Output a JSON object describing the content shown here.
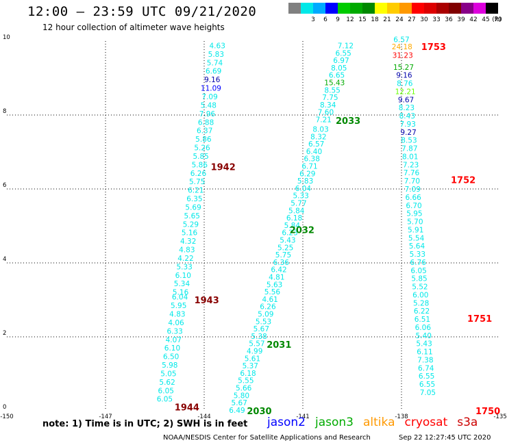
{
  "header": {
    "title": "12:00 – 23:59 UTC 09/21/2020",
    "subtitle": "12 hour collection of altimeter wave heights"
  },
  "scale": {
    "unit_label": "(ft)",
    "bins": [
      {
        "label": "",
        "color": "#808080"
      },
      {
        "label": "3",
        "color": "#00e8e8"
      },
      {
        "label": "6",
        "color": "#00aaff"
      },
      {
        "label": "9",
        "color": "#0000ff"
      },
      {
        "label": "12",
        "color": "#00cc00"
      },
      {
        "label": "15",
        "color": "#00aa00"
      },
      {
        "label": "18",
        "color": "#008800"
      },
      {
        "label": "21",
        "color": "#ffff00"
      },
      {
        "label": "24",
        "color": "#ffcc00"
      },
      {
        "label": "27",
        "color": "#ff9900"
      },
      {
        "label": "30",
        "color": "#ff0000"
      },
      {
        "label": "33",
        "color": "#dd0000"
      },
      {
        "label": "36",
        "color": "#aa0000"
      },
      {
        "label": "39",
        "color": "#800000"
      },
      {
        "label": "42",
        "color": "#880088"
      },
      {
        "label": "45",
        "color": "#dd00dd"
      },
      {
        "label": "70",
        "color": "#000000"
      }
    ]
  },
  "map": {
    "lon_range": [
      -150,
      -135
    ],
    "lat_range": [
      0,
      10
    ],
    "x_ticks": [
      "-150",
      "-147",
      "-144",
      "-141",
      "-138",
      "-135"
    ],
    "y_ticks": [
      "0",
      "2",
      "4",
      "6",
      "8",
      "10"
    ],
    "grid": true
  },
  "chart_data": {
    "type": "scatter",
    "units": "ft",
    "tracks": [
      {
        "satellite": "cryosat",
        "color": "#00e8e8",
        "pass_labels": [
          {
            "text": "1942",
            "lat": 6.6,
            "lon": -143.8,
            "color": "#880000"
          },
          {
            "text": "1943",
            "lat": 3.0,
            "lon": -144.3,
            "color": "#880000"
          },
          {
            "text": "1944",
            "lat": 0.1,
            "lon": -144.9,
            "color": "#880000"
          }
        ],
        "points": [
          {
            "lat": 9.88,
            "value": "4.63"
          },
          {
            "lat": 9.65,
            "value": "5.83"
          },
          {
            "lat": 9.42,
            "value": "5.74"
          },
          {
            "lat": 9.19,
            "value": "6.69"
          },
          {
            "lat": 8.96,
            "value": "9.16",
            "color": "#0000aa"
          },
          {
            "lat": 8.73,
            "value": "11.09",
            "color": "#0000ff"
          },
          {
            "lat": 8.5,
            "value": "7.09"
          },
          {
            "lat": 8.27,
            "value": "5.48"
          },
          {
            "lat": 8.04,
            "value": "7.96"
          },
          {
            "lat": 7.81,
            "value": "6.88"
          },
          {
            "lat": 7.58,
            "value": "6.37"
          },
          {
            "lat": 7.35,
            "value": "5.86"
          },
          {
            "lat": 7.12,
            "value": "5.26"
          },
          {
            "lat": 6.89,
            "value": "5.85"
          },
          {
            "lat": 6.66,
            "value": "5.86"
          },
          {
            "lat": 6.43,
            "value": "6.26"
          },
          {
            "lat": 6.2,
            "value": "5.75"
          },
          {
            "lat": 5.97,
            "value": "6.21"
          },
          {
            "lat": 5.74,
            "value": "6.35"
          },
          {
            "lat": 5.51,
            "value": "5.69"
          },
          {
            "lat": 5.28,
            "value": "5.65"
          },
          {
            "lat": 5.05,
            "value": "5.29"
          },
          {
            "lat": 4.82,
            "value": "5.16"
          },
          {
            "lat": 4.59,
            "value": "4.32"
          },
          {
            "lat": 4.36,
            "value": "4.83"
          },
          {
            "lat": 4.13,
            "value": "4.22"
          },
          {
            "lat": 3.9,
            "value": "5.33"
          },
          {
            "lat": 3.67,
            "value": "6.10"
          },
          {
            "lat": 3.44,
            "value": "5.34"
          },
          {
            "lat": 3.21,
            "value": "5.16"
          },
          {
            "lat": 3.08,
            "value": "6.04"
          },
          {
            "lat": 2.85,
            "value": "5.95"
          },
          {
            "lat": 2.62,
            "value": "4.83"
          },
          {
            "lat": 2.39,
            "value": "4.06"
          },
          {
            "lat": 2.16,
            "value": "6.33"
          },
          {
            "lat": 1.93,
            "value": "4.07"
          },
          {
            "lat": 1.7,
            "value": "6.10"
          },
          {
            "lat": 1.47,
            "value": "6.50"
          },
          {
            "lat": 1.24,
            "value": "5.98"
          },
          {
            "lat": 1.01,
            "value": "5.05"
          },
          {
            "lat": 0.78,
            "value": "5.62"
          },
          {
            "lat": 0.55,
            "value": "6.05"
          },
          {
            "lat": 0.32,
            "value": "6.05"
          }
        ]
      },
      {
        "satellite": "jason3",
        "color": "#00e8e8",
        "pass_labels": [
          {
            "text": "2033",
            "lat": 7.85,
            "lon": -140.0,
            "color": "#008800"
          },
          {
            "text": "2032",
            "lat": 4.9,
            "lon": -141.4,
            "color": "#008800"
          },
          {
            "text": "2031",
            "lat": 1.8,
            "lon": -142.1,
            "color": "#008800"
          },
          {
            "text": "2030",
            "lat": 0.0,
            "lon": -142.7,
            "color": "#008800"
          }
        ],
        "points": [
          {
            "lat": 9.88,
            "value": "7.12"
          },
          {
            "lat": 9.68,
            "value": "6.55"
          },
          {
            "lat": 9.48,
            "value": "6.97"
          },
          {
            "lat": 9.28,
            "value": "8.05"
          },
          {
            "lat": 9.08,
            "value": "6.65"
          },
          {
            "lat": 8.88,
            "value": "15.43",
            "color": "#00aa00"
          },
          {
            "lat": 8.68,
            "value": "8.55"
          },
          {
            "lat": 8.48,
            "value": "7.75"
          },
          {
            "lat": 8.28,
            "value": "8.34"
          },
          {
            "lat": 8.08,
            "value": "7.60"
          },
          {
            "lat": 7.88,
            "value": "7.21"
          },
          {
            "lat": 7.62,
            "value": "8.03"
          },
          {
            "lat": 7.42,
            "value": "8.32"
          },
          {
            "lat": 7.22,
            "value": "6.57"
          },
          {
            "lat": 7.02,
            "value": "6.40"
          },
          {
            "lat": 6.82,
            "value": "6.38"
          },
          {
            "lat": 6.62,
            "value": "6.71"
          },
          {
            "lat": 6.42,
            "value": "6.29"
          },
          {
            "lat": 6.22,
            "value": "5.83"
          },
          {
            "lat": 6.02,
            "value": "6.04"
          },
          {
            "lat": 5.82,
            "value": "5.33"
          },
          {
            "lat": 5.62,
            "value": "5.77"
          },
          {
            "lat": 5.42,
            "value": "5.84"
          },
          {
            "lat": 5.22,
            "value": "6.18"
          },
          {
            "lat": 5.02,
            "value": "5.84"
          },
          {
            "lat": 4.82,
            "value": "6.23"
          },
          {
            "lat": 4.62,
            "value": "5.43"
          },
          {
            "lat": 4.42,
            "value": "5.25"
          },
          {
            "lat": 4.22,
            "value": "5.75"
          },
          {
            "lat": 4.02,
            "value": "6.36"
          },
          {
            "lat": 3.82,
            "value": "6.42"
          },
          {
            "lat": 3.62,
            "value": "4.81"
          },
          {
            "lat": 3.42,
            "value": "5.63"
          },
          {
            "lat": 3.22,
            "value": "5.56"
          },
          {
            "lat": 3.02,
            "value": "4.61"
          },
          {
            "lat": 2.82,
            "value": "6.26"
          },
          {
            "lat": 2.62,
            "value": "5.09"
          },
          {
            "lat": 2.42,
            "value": "5.53"
          },
          {
            "lat": 2.22,
            "value": "5.67"
          },
          {
            "lat": 2.02,
            "value": "5.38"
          },
          {
            "lat": 1.82,
            "value": "5.57"
          },
          {
            "lat": 1.62,
            "value": "4.99"
          },
          {
            "lat": 1.42,
            "value": "5.61"
          },
          {
            "lat": 1.22,
            "value": "5.37"
          },
          {
            "lat": 1.02,
            "value": "6.18"
          },
          {
            "lat": 0.82,
            "value": "5.55"
          },
          {
            "lat": 0.62,
            "value": "5.66"
          },
          {
            "lat": 0.42,
            "value": "5.80"
          },
          {
            "lat": 0.22,
            "value": "5.67"
          },
          {
            "lat": 0.02,
            "value": "6.49"
          }
        ]
      },
      {
        "satellite": "s3a",
        "color": "#00e8e8",
        "pass_labels": [
          {
            "text": "1753",
            "lat": 9.85,
            "lon": -137.4,
            "color": "#ff0000"
          },
          {
            "text": "1752",
            "lat": 6.25,
            "lon": -136.5,
            "color": "#ff0000"
          },
          {
            "text": "1751",
            "lat": 2.5,
            "lon": -136.0,
            "color": "#ff0000"
          },
          {
            "text": "1750",
            "lat": 0.0,
            "lon": -135.75,
            "color": "#ff0000"
          }
        ],
        "points": [
          {
            "lat": 10.05,
            "value": "6.57"
          },
          {
            "lat": 9.85,
            "value": "24.18",
            "color": "#ffaa00"
          },
          {
            "lat": 9.62,
            "value": "31.23",
            "color": "#ff0000"
          },
          {
            "lat": 9.3,
            "value": "15.27",
            "color": "#00aa00"
          },
          {
            "lat": 9.08,
            "value": "9.16",
            "color": "#0000aa"
          },
          {
            "lat": 8.86,
            "value": "8.76"
          },
          {
            "lat": 8.64,
            "value": "12.21",
            "color": "#66ff00"
          },
          {
            "lat": 8.42,
            "value": "9.67",
            "color": "#0000aa"
          },
          {
            "lat": 8.2,
            "value": "8.23"
          },
          {
            "lat": 7.98,
            "value": "8.43"
          },
          {
            "lat": 7.76,
            "value": "7.93"
          },
          {
            "lat": 7.54,
            "value": "9.27",
            "color": "#0000aa"
          },
          {
            "lat": 7.32,
            "value": "8.53"
          },
          {
            "lat": 7.1,
            "value": "7.87"
          },
          {
            "lat": 6.88,
            "value": "8.01"
          },
          {
            "lat": 6.66,
            "value": "7.23"
          },
          {
            "lat": 6.44,
            "value": "7.76"
          },
          {
            "lat": 6.22,
            "value": "7.70"
          },
          {
            "lat": 6.0,
            "value": "7.09"
          },
          {
            "lat": 5.78,
            "value": "6.66"
          },
          {
            "lat": 5.56,
            "value": "6.70"
          },
          {
            "lat": 5.34,
            "value": "5.95"
          },
          {
            "lat": 5.12,
            "value": "5.70"
          },
          {
            "lat": 4.9,
            "value": "5.91"
          },
          {
            "lat": 4.68,
            "value": "5.54"
          },
          {
            "lat": 4.46,
            "value": "5.64"
          },
          {
            "lat": 4.24,
            "value": "5.33"
          },
          {
            "lat": 4.02,
            "value": "6.76"
          },
          {
            "lat": 3.8,
            "value": "6.05"
          },
          {
            "lat": 3.58,
            "value": "5.85"
          },
          {
            "lat": 3.36,
            "value": "5.52"
          },
          {
            "lat": 3.14,
            "value": "6.00"
          },
          {
            "lat": 2.92,
            "value": "5.28"
          },
          {
            "lat": 2.7,
            "value": "6.22"
          },
          {
            "lat": 2.48,
            "value": "6.51"
          },
          {
            "lat": 2.26,
            "value": "6.06"
          },
          {
            "lat": 2.04,
            "value": "5.40"
          },
          {
            "lat": 1.82,
            "value": "5.43"
          },
          {
            "lat": 1.6,
            "value": "6.11"
          },
          {
            "lat": 1.38,
            "value": "7.38"
          },
          {
            "lat": 1.16,
            "value": "6.74"
          },
          {
            "lat": 0.94,
            "value": "6.55"
          },
          {
            "lat": 0.72,
            "value": "6.55"
          },
          {
            "lat": 0.5,
            "value": "7.05"
          }
        ]
      }
    ]
  },
  "note": "note:  1) Time is in UTC;  2) SWH is in feet",
  "legend": [
    {
      "label": "jason2",
      "color": "#0000ff"
    },
    {
      "label": "jason3",
      "color": "#00aa00"
    },
    {
      "label": "altika",
      "color": "#ff9900"
    },
    {
      "label": "cryosat",
      "color": "#ff0000"
    },
    {
      "label": "s3a",
      "color": "#cc0000"
    }
  ],
  "footer": {
    "credit": "NOAA/NESDIS Center for Satellite Applications and Research",
    "stamp": "Sep 22 12:27:45 UTC 2020"
  }
}
